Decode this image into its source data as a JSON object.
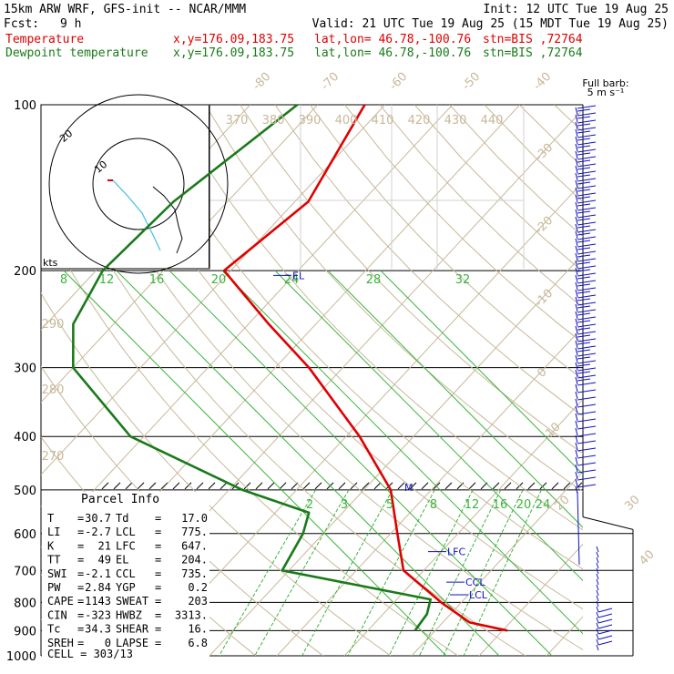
{
  "header": {
    "model": "15km ARW WRF, GFS-init  -- NCAR/MMM",
    "init": "Init: 12 UTC Tue 19 Aug 25",
    "fcst_label": "Fcst:",
    "fcst_value": "9 h",
    "valid": "Valid: 21 UTC Tue 19 Aug 25 (15 MDT Tue 19 Aug 25)",
    "temp_line": {
      "name": "Temperature",
      "xy": "x,y=176.09,183.75",
      "latlon": "lat,lon= 46.78,-100.76",
      "stn": "stn=BIS ,72764"
    },
    "dew_line": {
      "name": "Dewpoint temperature",
      "xy": "x,y=176.09,183.75",
      "latlon": "lat,lon= 46.78,-100.76",
      "stn": "stn=BIS ,72764"
    }
  },
  "colors": {
    "temperature": "#e00000",
    "dewpoint": "#1a7a1a",
    "isotherm": "#c8b89a",
    "mixing": "#3cb43c",
    "barb": "#1010c0",
    "hodo_trace": "#40c0e0"
  },
  "chart_data": {
    "type": "line",
    "title": "",
    "pressure_levels": [
      "100",
      "200",
      "300",
      "400",
      "500",
      "600",
      "700",
      "800",
      "900",
      "1000"
    ],
    "isotherm_labels": [
      "-80",
      "-70",
      "-60",
      "-50",
      "-40",
      "-30",
      "-20",
      "-10",
      "0",
      "10",
      "20",
      "30",
      "40"
    ],
    "theta_labels": [
      "370",
      "380",
      "390",
      "400",
      "410",
      "420",
      "430",
      "440"
    ],
    "theta_left_labels": [
      "290",
      "280",
      "270"
    ],
    "mixing_top_labels": [
      "8",
      "12",
      "16",
      "20",
      "24",
      "28",
      "32"
    ],
    "mixing_low_labels": [
      "2",
      "3",
      "5",
      "8",
      "12",
      "16",
      "20",
      "24"
    ],
    "series": [
      {
        "name": "Temperature",
        "points": [
          [
            100,
            -63
          ],
          [
            150,
            -58
          ],
          [
            200,
            -61
          ],
          [
            250,
            -47
          ],
          [
            300,
            -35
          ],
          [
            400,
            -18
          ],
          [
            500,
            -6
          ],
          [
            600,
            1
          ],
          [
            700,
            7
          ],
          [
            800,
            17
          ],
          [
            870,
            24
          ],
          [
            900,
            30.7
          ]
        ]
      },
      {
        "name": "Dewpoint temperature",
        "points": [
          [
            100,
            -73
          ],
          [
            150,
            -78
          ],
          [
            200,
            -79
          ],
          [
            250,
            -76
          ],
          [
            300,
            -70
          ],
          [
            400,
            -52
          ],
          [
            500,
            -28
          ],
          [
            550,
            -15
          ],
          [
            600,
            -13
          ],
          [
            700,
            -11
          ],
          [
            790,
            15
          ],
          [
            840,
            16.5
          ],
          [
            900,
            17
          ]
        ]
      }
    ],
    "levels": [
      {
        "label": "EL",
        "pressure": 204
      },
      {
        "label": "M",
        "pressure": 495
      },
      {
        "label": "LFC",
        "pressure": 647
      },
      {
        "label": "CCL",
        "pressure": 735
      },
      {
        "label": "LCL",
        "pressure": 775
      }
    ]
  },
  "parcel_info": {
    "title": "Parcel Info",
    "rows": [
      {
        "k1": "T",
        "v1": "30.7",
        "k2": "Td",
        "v2": "17.0"
      },
      {
        "k1": "LI",
        "v1": "-2.7",
        "k2": "LCL",
        "v2": "775."
      },
      {
        "k1": "K",
        "v1": "21",
        "k2": "LFC",
        "v2": "647."
      },
      {
        "k1": "TT",
        "v1": "49",
        "k2": "EL",
        "v2": "204."
      },
      {
        "k1": "SWI",
        "v1": "-2.1",
        "k2": "CCL",
        "v2": "735."
      },
      {
        "k1": "PW",
        "v1": "2.84",
        "k2": "YGP",
        "v2": "0.2"
      },
      {
        "k1": "CAPE",
        "v1": "1143",
        "k2": "SWEAT",
        "v2": "203"
      },
      {
        "k1": "CIN",
        "v1": "-323",
        "k2": "HWBZ",
        "v2": "3313."
      },
      {
        "k1": "Tc",
        "v1": "34.3",
        "k2": "SHEAR",
        "v2": "16."
      },
      {
        "k1": "SREH",
        "v1": "0",
        "k2": "LAPSE",
        "v2": "6.8"
      }
    ],
    "cell": "CELL = 303/13"
  },
  "hodograph": {
    "unit": "kts",
    "ring_labels": [
      "20",
      "10"
    ]
  },
  "barb_legend": {
    "line1": "Full barb:",
    "line2": "5 m s⁻¹"
  }
}
